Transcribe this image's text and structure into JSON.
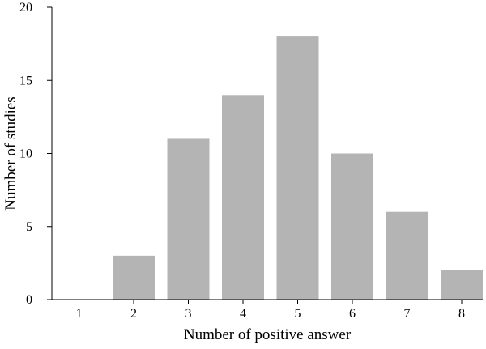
{
  "chart_data": {
    "type": "bar",
    "title": "",
    "xlabel": "Number of positive answer",
    "ylabel": "Number of studies",
    "categories": [
      "1",
      "2",
      "3",
      "4",
      "5",
      "6",
      "7",
      "8"
    ],
    "values": [
      0,
      3,
      11,
      14,
      18,
      10,
      6,
      2
    ],
    "ylim": [
      0,
      20
    ],
    "yticks": [
      0,
      5,
      10,
      15,
      20
    ],
    "yticklabels": [
      "0",
      "5",
      "10",
      "15",
      "20"
    ],
    "grid": false,
    "legend": "none",
    "bar_color": "#b4b4b4"
  }
}
